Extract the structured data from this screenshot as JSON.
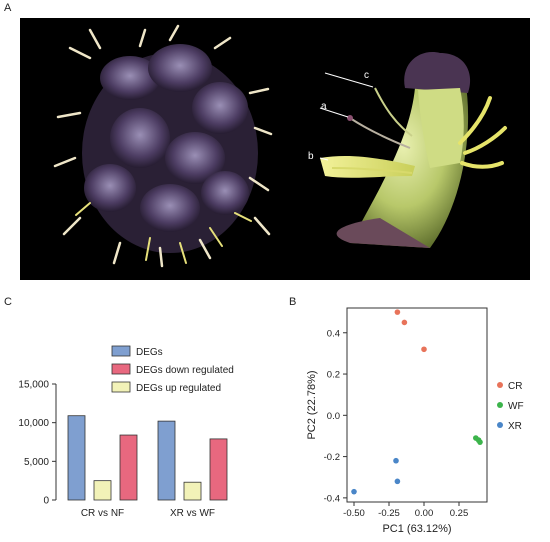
{
  "panels": {
    "a": "A",
    "b": "B",
    "c": "C"
  },
  "flower_labels": {
    "a": "a",
    "b": "b",
    "c": "c"
  },
  "colors": {
    "degs": "#7f9fd0",
    "down": "#e8687f",
    "up": "#f2f2b8",
    "cr": "#e8735a",
    "wf": "#3cb44b",
    "xr": "#4a86c8"
  },
  "chart_data": [
    {
      "type": "bar",
      "categories": [
        "CR vs NF",
        "XR vs WF"
      ],
      "series": [
        {
          "name": "DEGs",
          "values": [
            10900,
            10200
          ]
        },
        {
          "name": "DEGs down regulated",
          "values": [
            8400,
            7900
          ]
        },
        {
          "name": "DEGs up regulated",
          "values": [
            2500,
            2300
          ]
        }
      ],
      "ylim": [
        0,
        15000
      ],
      "yticks": [
        0,
        5000,
        10000,
        15000
      ],
      "ytick_labels": [
        "0",
        "5,000",
        "10,000",
        "15,000"
      ],
      "legend": "top-center",
      "grid": false
    },
    {
      "type": "scatter",
      "xlabel": "PC1 (63.12%)",
      "ylabel": "PC2 (22.78%)",
      "xlim": [
        -0.55,
        0.45
      ],
      "ylim": [
        -0.42,
        0.52
      ],
      "xticks": [
        -0.5,
        -0.25,
        0.0,
        0.25
      ],
      "xtick_labels": [
        "-0.50",
        "-0.25",
        "0.00",
        "0.25"
      ],
      "yticks": [
        -0.4,
        -0.2,
        0.0,
        0.2,
        0.4
      ],
      "ytick_labels": [
        "-0.4",
        "-0.2",
        "0.0",
        "0.2",
        "0.4"
      ],
      "legend": "right",
      "grid": false,
      "series": [
        {
          "name": "CR",
          "x": [
            -0.19,
            -0.14,
            0.0
          ],
          "y": [
            0.5,
            0.45,
            0.32
          ]
        },
        {
          "name": "WF",
          "x": [
            0.37,
            0.39,
            0.4
          ],
          "y": [
            -0.11,
            -0.12,
            -0.13
          ]
        },
        {
          "name": "XR",
          "x": [
            -0.2,
            -0.19,
            -0.5
          ],
          "y": [
            -0.22,
            -0.32,
            -0.37
          ]
        }
      ]
    }
  ]
}
